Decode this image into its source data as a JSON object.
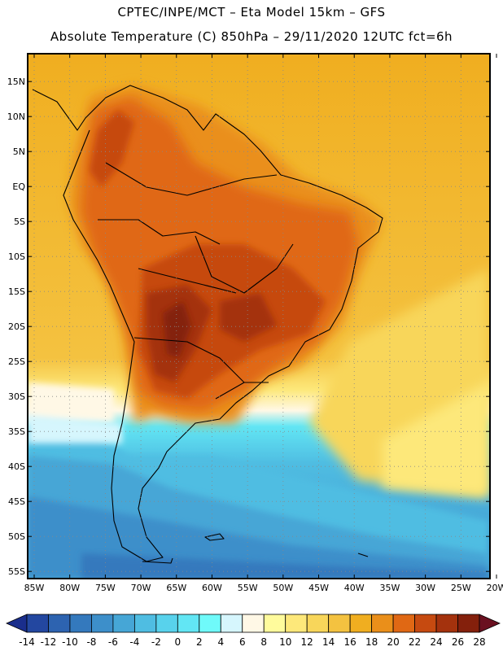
{
  "header": {
    "line1": "CPTEC/INPE/MCT –  Eta Model 15km – GFS",
    "line2": "Absolute Temperature (C) 850hPa – 29/11/2020 12UTC fct=6h"
  },
  "map": {
    "region": "South America",
    "lon_range": [
      -85,
      -20
    ],
    "lat_range": [
      -58,
      17
    ],
    "lat_ticks": [
      {
        "value": 15,
        "label": "15N"
      },
      {
        "value": 10,
        "label": "10N"
      },
      {
        "value": 5,
        "label": "5N"
      },
      {
        "value": 0,
        "label": "EQ"
      },
      {
        "value": -5,
        "label": "5S"
      },
      {
        "value": -10,
        "label": "10S"
      },
      {
        "value": -15,
        "label": "15S"
      },
      {
        "value": -20,
        "label": "20S"
      },
      {
        "value": -25,
        "label": "25S"
      },
      {
        "value": -30,
        "label": "30S"
      },
      {
        "value": -35,
        "label": "35S"
      },
      {
        "value": -40,
        "label": "40S"
      },
      {
        "value": -45,
        "label": "45S"
      },
      {
        "value": -50,
        "label": "50S"
      },
      {
        "value": -55,
        "label": "55S"
      }
    ],
    "lon_ticks": [
      {
        "value": -85,
        "label": "85W"
      },
      {
        "value": -80,
        "label": "80W"
      },
      {
        "value": -75,
        "label": "75W"
      },
      {
        "value": -70,
        "label": "70W"
      },
      {
        "value": -65,
        "label": "65W"
      },
      {
        "value": -60,
        "label": "60W"
      },
      {
        "value": -55,
        "label": "55W"
      },
      {
        "value": -50,
        "label": "50W"
      },
      {
        "value": -45,
        "label": "45W"
      },
      {
        "value": -40,
        "label": "40W"
      },
      {
        "value": -35,
        "label": "35W"
      },
      {
        "value": -30,
        "label": "30W"
      },
      {
        "value": -25,
        "label": "25W"
      },
      {
        "value": -20,
        "label": "20W"
      }
    ]
  },
  "colorbar": {
    "unit": "C",
    "levels": [
      "-14",
      "-12",
      "-10",
      "-8",
      "-6",
      "-4",
      "-2",
      "0",
      "2",
      "4",
      "6",
      "8",
      "10",
      "12",
      "14",
      "16",
      "18",
      "20",
      "22",
      "24",
      "26",
      "28"
    ],
    "colors": [
      "#1a2e8c",
      "#2347a0",
      "#2d63b0",
      "#3479bd",
      "#3d8fca",
      "#46a6d6",
      "#4fbde2",
      "#58d2ec",
      "#62e6f4",
      "#6ffafa",
      "#d6f6fd",
      "#fff8e6",
      "#fffb9c",
      "#fde87a",
      "#f8d65a",
      "#f4c240",
      "#f0ae20",
      "#ea8f1a",
      "#e06814",
      "#c64a10",
      "#a4320d",
      "#84200c",
      "#6a1020"
    ]
  }
}
